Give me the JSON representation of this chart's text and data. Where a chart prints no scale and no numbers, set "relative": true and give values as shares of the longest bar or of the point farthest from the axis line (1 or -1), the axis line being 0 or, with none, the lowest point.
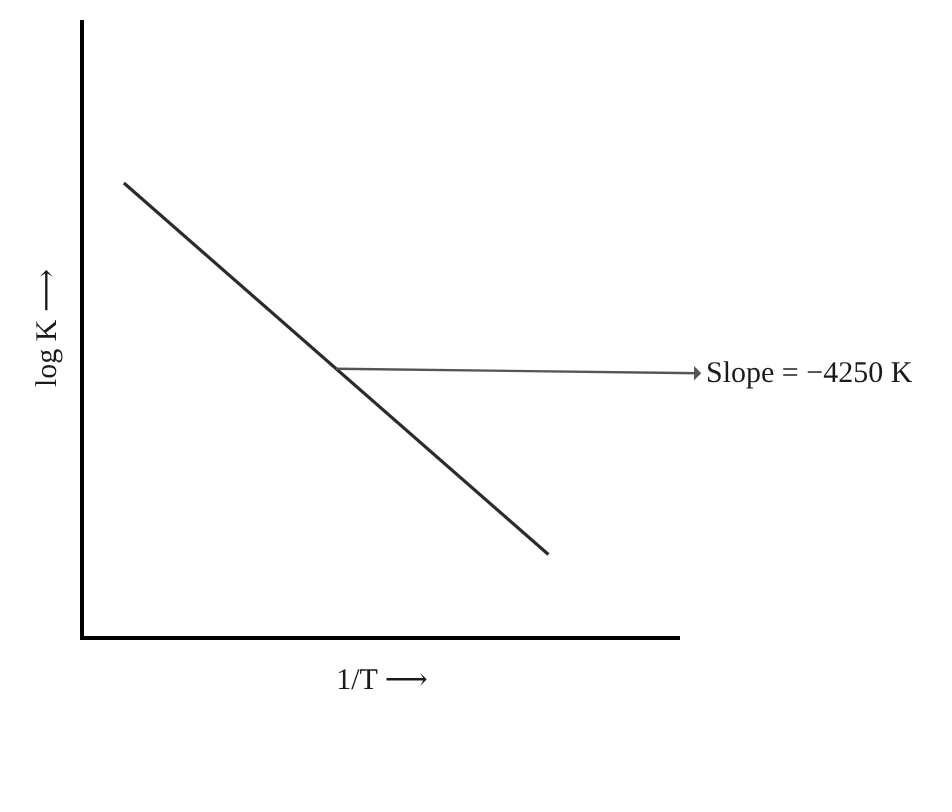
{
  "chart_data": {
    "type": "line",
    "xlabel": "1/T ⟶",
    "ylabel": "log K ⟶",
    "categories": [
      null,
      null
    ],
    "relative": true,
    "series": [
      {
        "color": "#2b2b2b",
        "values": [
          1,
          0.18
        ]
      }
    ],
    "annotations": [
      "Slope = −4250 K"
    ]
  }
}
